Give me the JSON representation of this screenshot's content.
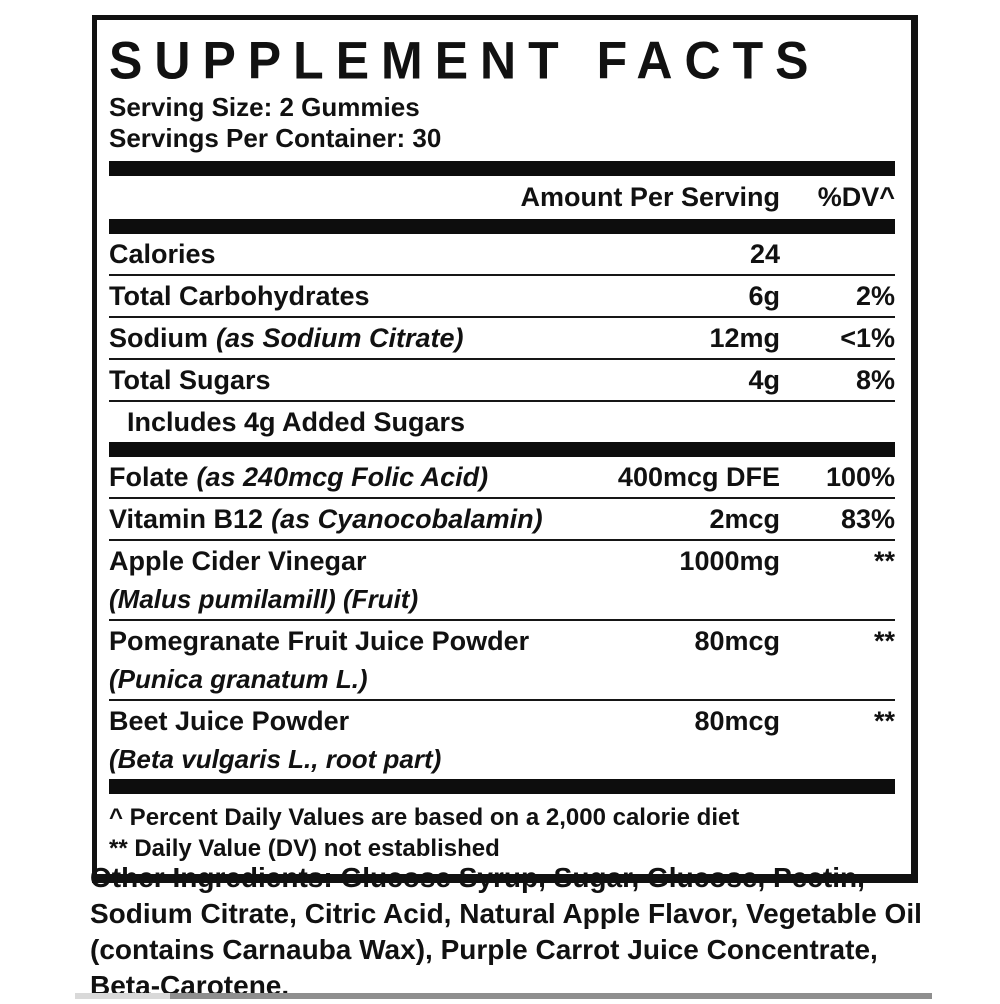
{
  "label": {
    "title": "SUPPLEMENT FACTS",
    "serving_size": "Serving Size: 2 Gummies",
    "servings_per_container": "Servings Per Container: 30",
    "columns": {
      "amount": "Amount Per Serving",
      "dv": "%DV^"
    },
    "rows": [
      {
        "name": "Calories",
        "amount": "24",
        "dv": ""
      },
      {
        "name": "Total Carbohydrates",
        "amount": "6g",
        "dv": "2%"
      },
      {
        "name": "Sodium",
        "name_italic": "(as Sodium Citrate)",
        "amount": "12mg",
        "dv": "<1%"
      },
      {
        "name": "Total Sugars",
        "amount": "4g",
        "dv": "8%"
      },
      {
        "name": "Includes 4g Added Sugars",
        "amount": "",
        "dv": ""
      },
      {
        "name": "Folate",
        "name_italic": "(as 240mcg Folic Acid)",
        "amount": "400mcg DFE",
        "dv": "100%"
      },
      {
        "name": "Vitamin B12",
        "name_italic": "(as Cyanocobalamin)",
        "amount": "2mcg",
        "dv": "83%"
      },
      {
        "name": "Apple Cider Vinegar",
        "sub": "(Malus pumilamill) (Fruit)",
        "amount": "1000mg",
        "dv": "**"
      },
      {
        "name": "Pomegranate Fruit Juice Powder",
        "sub": "(Punica granatum L.)",
        "amount": "80mcg",
        "dv": "**"
      },
      {
        "name": "Beet Juice Powder",
        "sub": "(Beta vulgaris L., root part)",
        "amount": "80mcg",
        "dv": "**"
      }
    ],
    "footnotes": [
      "^ Percent Daily Values are based on a 2,000 calorie diet",
      "** Daily Value (DV) not established"
    ]
  },
  "other_ingredients": {
    "label": "Other Ingredients:",
    "text": " Glucose Syrup, Sugar, Glucose, Pectin, Sodium Citrate, Citric Acid, Natural Apple Flavor, Vegetable Oil (contains Carnauba Wax), Purple Carrot Juice Concentrate, Beta-Carotene."
  },
  "colors": {
    "ink": "#111111",
    "bar": "#0d0d0d",
    "strip_light": "#d9d9d9",
    "strip_dark": "#8f8f8f"
  }
}
